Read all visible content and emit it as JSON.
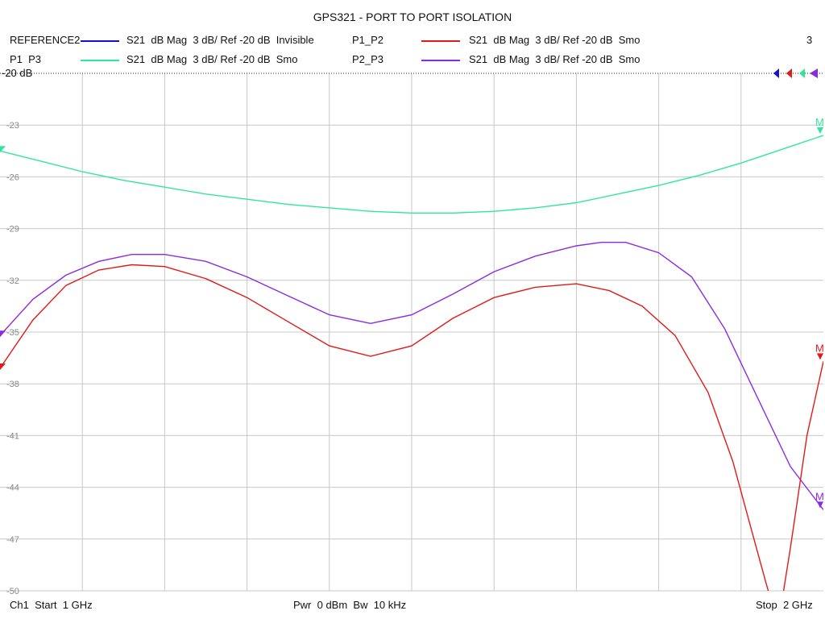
{
  "header": {
    "title": "GPS321 - PORT TO PORT ISOLATION",
    "channel_count": "3"
  },
  "legend": [
    {
      "name": "REFERENCE2",
      "desc": "S21  dB Mag  3 dB/ Ref -20 dB  Invisible",
      "color": "#1010d0"
    },
    {
      "name": "P1_P2",
      "desc": "S21  dB Mag  3 dB/ Ref -20 dB  Smo",
      "color": "#e01a1a"
    },
    {
      "name": "P1  P3",
      "desc": "S21  dB Mag  3 dB/ Ref -20 dB  Smo",
      "color": "#2ee89a"
    },
    {
      "name": "P2_P3",
      "desc": "S21  dB Mag  3 dB/ Ref -20 dB  Smo",
      "color": "#8a2be2"
    }
  ],
  "footer": {
    "start": "Ch1  Start  1 GHz",
    "center": "Pwr  0 dBm  Bw  10 kHz",
    "stop": "Stop  2 GHz"
  },
  "chart_data": {
    "type": "line",
    "title": "GPS321 - PORT TO PORT ISOLATION",
    "ref_label": "-20 dB",
    "xlim": [
      1,
      2
    ],
    "ylim": [
      -50,
      -20
    ],
    "yticks": [
      -20,
      -23,
      -26,
      -29,
      -32,
      -35,
      -38,
      -41,
      -44,
      -47,
      -50
    ],
    "ytick_labels": [
      "-20",
      "-23",
      "-26",
      "-29",
      "-32",
      "-35",
      "-38",
      "-41",
      "-44",
      "-47",
      "-50"
    ],
    "grid": true,
    "series": [
      {
        "name": "P1  P3",
        "color": "#2ee89a",
        "marker_label": "M",
        "x": [
          1.0,
          1.05,
          1.1,
          1.15,
          1.2,
          1.25,
          1.3,
          1.35,
          1.4,
          1.45,
          1.5,
          1.55,
          1.6,
          1.65,
          1.7,
          1.75,
          1.8,
          1.85,
          1.9,
          1.95,
          2.0
        ],
        "y": [
          -24.5,
          -25.1,
          -25.7,
          -26.2,
          -26.6,
          -27.0,
          -27.3,
          -27.6,
          -27.8,
          -28.0,
          -28.1,
          -28.1,
          -28.0,
          -27.8,
          -27.5,
          -27.0,
          -26.5,
          -25.9,
          -25.2,
          -24.4,
          -23.6
        ]
      },
      {
        "name": "P2_P3",
        "color": "#8a2be2",
        "marker_label": "M",
        "x": [
          1.0,
          1.04,
          1.08,
          1.12,
          1.16,
          1.2,
          1.25,
          1.3,
          1.35,
          1.4,
          1.45,
          1.5,
          1.55,
          1.6,
          1.65,
          1.7,
          1.73,
          1.76,
          1.8,
          1.84,
          1.88,
          1.92,
          1.96,
          2.0
        ],
        "y": [
          -35.2,
          -33.1,
          -31.7,
          -30.9,
          -30.5,
          -30.5,
          -30.9,
          -31.8,
          -32.9,
          -34.0,
          -34.5,
          -34.0,
          -32.8,
          -31.5,
          -30.6,
          -30.0,
          -29.8,
          -29.8,
          -30.4,
          -31.8,
          -34.8,
          -38.8,
          -42.8,
          -45.3
        ]
      },
      {
        "name": "P1_P2",
        "color": "#e01a1a",
        "marker_label": "M",
        "x": [
          1.0,
          1.04,
          1.08,
          1.12,
          1.16,
          1.2,
          1.25,
          1.3,
          1.35,
          1.4,
          1.45,
          1.5,
          1.55,
          1.6,
          1.65,
          1.7,
          1.74,
          1.78,
          1.82,
          1.86,
          1.89,
          1.91,
          1.93,
          1.945,
          1.96,
          1.98,
          2.0
        ],
        "y": [
          -37.1,
          -34.3,
          -32.3,
          -31.4,
          -31.1,
          -31.2,
          -31.9,
          -33.0,
          -34.4,
          -35.8,
          -36.4,
          -35.8,
          -34.2,
          -33.0,
          -32.4,
          -32.2,
          -32.6,
          -33.5,
          -35.2,
          -38.5,
          -42.5,
          -46.0,
          -49.5,
          -52.0,
          -47.5,
          -41.0,
          -36.7
        ]
      }
    ]
  }
}
